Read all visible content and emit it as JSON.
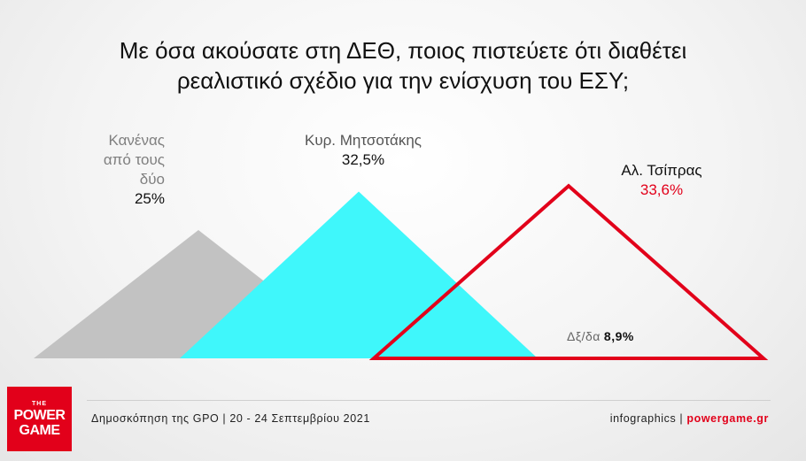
{
  "title": {
    "line1": "Με όσα ακούσατε στη ΔΕΘ, ποιος πιστεύετε ότι διαθέτει",
    "line2": "ρεαλιστικό σχέδιο για την ενίσχυση του ΕΣΥ;"
  },
  "chart_data": {
    "type": "triangle",
    "title": "Με όσα ακούσατε στη ΔΕΘ, ποιος πιστεύετε ότι διαθέτει ρεαλιστικό σχέδιο για την ενίσχυση του ΕΣΥ;",
    "unit": "%",
    "series": [
      {
        "name_lines": [
          "Κανένας",
          "από τους",
          "δύο"
        ],
        "value": 25.0,
        "label": "25%",
        "color": "#c2c2c2",
        "style": "filled"
      },
      {
        "name_lines": [
          "Κυρ. Μητσοτάκης"
        ],
        "value": 32.5,
        "label": "32,5%",
        "color": "#3ff7fb",
        "style": "filled"
      },
      {
        "name_lines": [
          "Αλ. Τσίπρας"
        ],
        "value": 33.6,
        "label": "33,6%",
        "color": "#e2001a",
        "style": "outline"
      }
    ],
    "other": {
      "label": "Δξ/δα",
      "value": 8.9,
      "value_label": "8,9%"
    }
  },
  "footer": {
    "source": "Δημοσκόπηση της GPO | 20 - 24 Σεπτεμβρίου 2021",
    "credit_prefix": "infographics | ",
    "credit_site": "powergame.gr"
  },
  "logo": {
    "the": "THE",
    "word1": "POWER",
    "word2": "GAME"
  },
  "colors": {
    "accent": "#e2001a"
  }
}
